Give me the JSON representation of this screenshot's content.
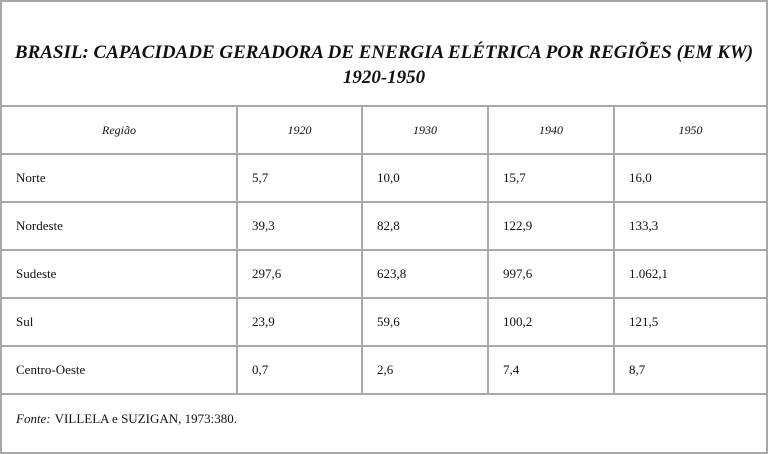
{
  "header": {
    "title": "BRASIL: CAPACIDADE GERADORA DE ENERGIA ELÉTRICA POR REGIÕES (EM KW)",
    "subtitle": "1920-1950"
  },
  "table": {
    "columns": [
      "Região",
      "1920",
      "1930",
      "1940",
      "1950"
    ],
    "rows": [
      [
        "Norte",
        "5,7",
        "10,0",
        "15,7",
        "16,0"
      ],
      [
        "Nordeste",
        "39,3",
        "82,8",
        "122,9",
        "133,3"
      ],
      [
        "Sudeste",
        "297,6",
        "623,8",
        "997,6",
        "1.062,1"
      ],
      [
        "Sul",
        "23,9",
        "59,6",
        "100,2",
        "121,5"
      ],
      [
        "Centro-Oeste",
        "0,7",
        "2,6",
        "7,4",
        "8,7"
      ]
    ]
  },
  "footer": {
    "label": "Fonte:",
    "text": "VILLELA e SUZIGAN, 1973:380."
  }
}
